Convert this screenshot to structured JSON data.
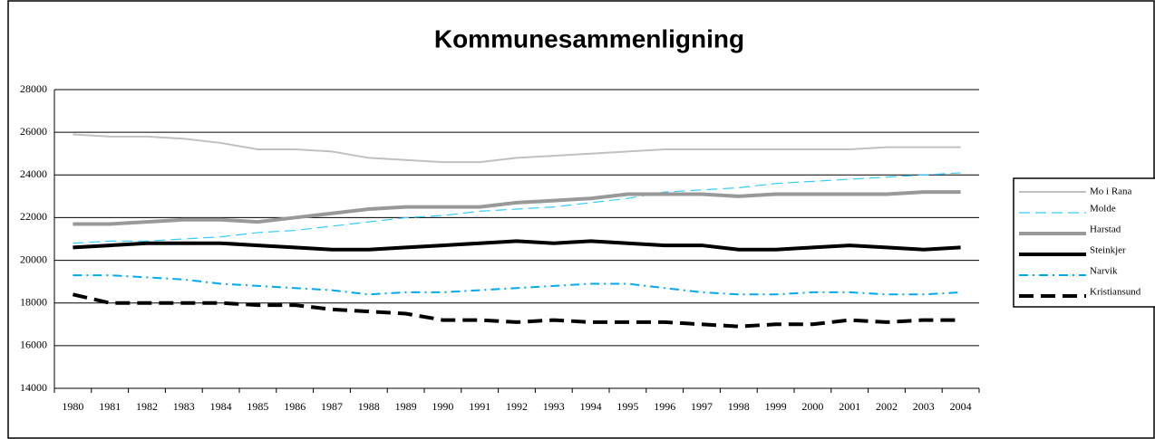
{
  "chart_data": {
    "type": "line",
    "title": "Kommunesammenligning",
    "categories": [
      "1980",
      "1981",
      "1982",
      "1983",
      "1984",
      "1985",
      "1986",
      "1987",
      "1988",
      "1989",
      "1990",
      "1991",
      "1992",
      "1993",
      "1994",
      "1995",
      "1996",
      "1997",
      "1998",
      "1999",
      "2000",
      "2001",
      "2002",
      "2003",
      "2004"
    ],
    "ylim": [
      14000,
      28000
    ],
    "yticks": [
      14000,
      16000,
      18000,
      20000,
      22000,
      24000,
      26000,
      28000
    ],
    "grid": true,
    "legend": "right",
    "series": [
      {
        "name": "Mo i Rana",
        "color": "#c0c0c0",
        "line_style": "thin",
        "values": [
          25900,
          25800,
          25800,
          25700,
          25500,
          25200,
          25200,
          25100,
          24800,
          24700,
          24600,
          24600,
          24800,
          24900,
          25000,
          25100,
          25200,
          25200,
          25200,
          25200,
          25200,
          25200,
          25300,
          25300,
          25300
        ]
      },
      {
        "name": "Molde",
        "color": "#33ccff",
        "line_style": "dashed",
        "values": [
          20800,
          20900,
          20900,
          21000,
          21100,
          21300,
          21400,
          21600,
          21800,
          22000,
          22100,
          22300,
          22400,
          22500,
          22700,
          22900,
          23200,
          23300,
          23400,
          23600,
          23700,
          23800,
          23900,
          24000,
          24100
        ]
      },
      {
        "name": "Harstad",
        "color": "#999999",
        "line_style": "thick",
        "values": [
          21700,
          21700,
          21800,
          21900,
          21900,
          21800,
          22000,
          22200,
          22400,
          22500,
          22500,
          22500,
          22700,
          22800,
          22900,
          23100,
          23100,
          23100,
          23000,
          23100,
          23100,
          23100,
          23100,
          23200,
          23200
        ]
      },
      {
        "name": "Steinkjer",
        "color": "#000000",
        "line_style": "thick",
        "values": [
          20600,
          20700,
          20800,
          20800,
          20800,
          20700,
          20600,
          20500,
          20500,
          20600,
          20700,
          20800,
          20900,
          20800,
          20900,
          20800,
          20700,
          20700,
          20500,
          20500,
          20600,
          20700,
          20600,
          20500,
          20600
        ]
      },
      {
        "name": "Narvik",
        "color": "#00aaee",
        "line_style": "dashdot",
        "values": [
          19300,
          19300,
          19200,
          19100,
          18900,
          18800,
          18700,
          18600,
          18400,
          18500,
          18500,
          18600,
          18700,
          18800,
          18900,
          18900,
          18700,
          18500,
          18400,
          18400,
          18500,
          18500,
          18400,
          18400,
          18500
        ]
      },
      {
        "name": "Kristiansund",
        "color": "#000000",
        "line_style": "bigdash",
        "values": [
          18400,
          18000,
          18000,
          18000,
          18000,
          17900,
          17900,
          17700,
          17600,
          17500,
          17200,
          17200,
          17100,
          17200,
          17100,
          17100,
          17100,
          17000,
          16900,
          17000,
          17000,
          17200,
          17100,
          17200,
          17200
        ]
      }
    ]
  }
}
